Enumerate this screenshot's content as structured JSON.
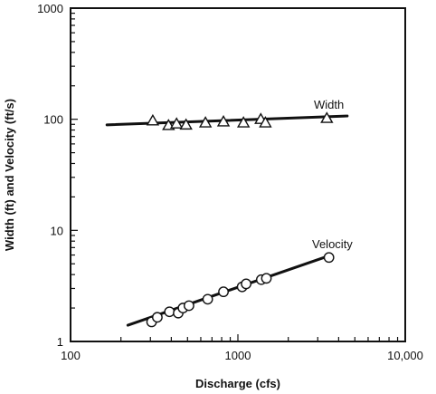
{
  "chart_data": {
    "type": "scatter",
    "x_scale": "log",
    "y_scale": "log",
    "xlabel": "Discharge (cfs)",
    "ylabel": "Width (ft) and Velocity (ft/s)",
    "xlim": [
      100,
      10000
    ],
    "ylim": [
      1,
      1000
    ],
    "x_ticks": [
      {
        "value": 100,
        "label": "100"
      },
      {
        "value": 1000,
        "label": "1000"
      },
      {
        "value": 10000,
        "label": "10,000"
      }
    ],
    "y_ticks": [
      {
        "value": 1,
        "label": "1"
      },
      {
        "value": 10,
        "label": "10"
      },
      {
        "value": 100,
        "label": "100"
      },
      {
        "value": 1000,
        "label": "1000"
      }
    ],
    "grid": false,
    "series": [
      {
        "name": "Width",
        "marker": "triangle",
        "points": [
          {
            "x": 310,
            "y": 97
          },
          {
            "x": 385,
            "y": 88
          },
          {
            "x": 430,
            "y": 91
          },
          {
            "x": 490,
            "y": 89
          },
          {
            "x": 640,
            "y": 93
          },
          {
            "x": 820,
            "y": 95
          },
          {
            "x": 1080,
            "y": 93
          },
          {
            "x": 1370,
            "y": 100
          },
          {
            "x": 1460,
            "y": 93
          },
          {
            "x": 3400,
            "y": 102
          }
        ],
        "fit_line": [
          {
            "x": 165,
            "y": 89
          },
          {
            "x": 4500,
            "y": 107
          }
        ]
      },
      {
        "name": "Velocity",
        "marker": "circle",
        "points": [
          {
            "x": 305,
            "y": 1.5
          },
          {
            "x": 330,
            "y": 1.65
          },
          {
            "x": 390,
            "y": 1.85
          },
          {
            "x": 440,
            "y": 1.8
          },
          {
            "x": 470,
            "y": 2.0
          },
          {
            "x": 510,
            "y": 2.1
          },
          {
            "x": 660,
            "y": 2.4
          },
          {
            "x": 820,
            "y": 2.8
          },
          {
            "x": 1060,
            "y": 3.1
          },
          {
            "x": 1120,
            "y": 3.3
          },
          {
            "x": 1380,
            "y": 3.6
          },
          {
            "x": 1480,
            "y": 3.7
          },
          {
            "x": 3500,
            "y": 5.7
          }
        ],
        "fit_line": [
          {
            "x": 220,
            "y": 1.4
          },
          {
            "x": 3500,
            "y": 5.9
          }
        ]
      }
    ]
  }
}
